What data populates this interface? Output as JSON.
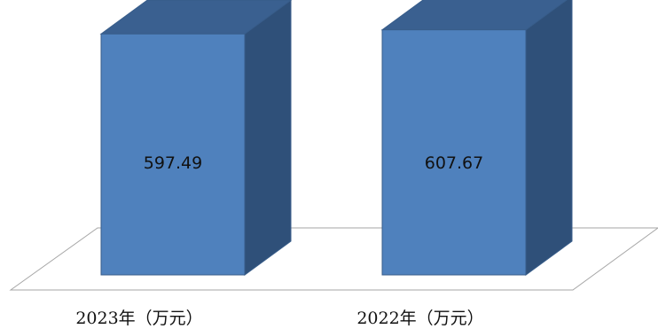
{
  "chart_data": {
    "type": "bar",
    "style": "3d-column",
    "categories": [
      "2023年（万元）",
      "2022年（万元）"
    ],
    "values": [
      597.49,
      607.67
    ],
    "value_labels": [
      "597.49",
      "607.67"
    ],
    "title": "",
    "xlabel": "",
    "ylabel": "",
    "ylim": [
      0,
      620
    ],
    "grid": false,
    "legend": "none",
    "colors": {
      "front": "#4f81bd",
      "top": "#3a6090",
      "side": "#2f5079",
      "edge": "#385d8a",
      "floor_line": "#a6a6a6"
    }
  }
}
